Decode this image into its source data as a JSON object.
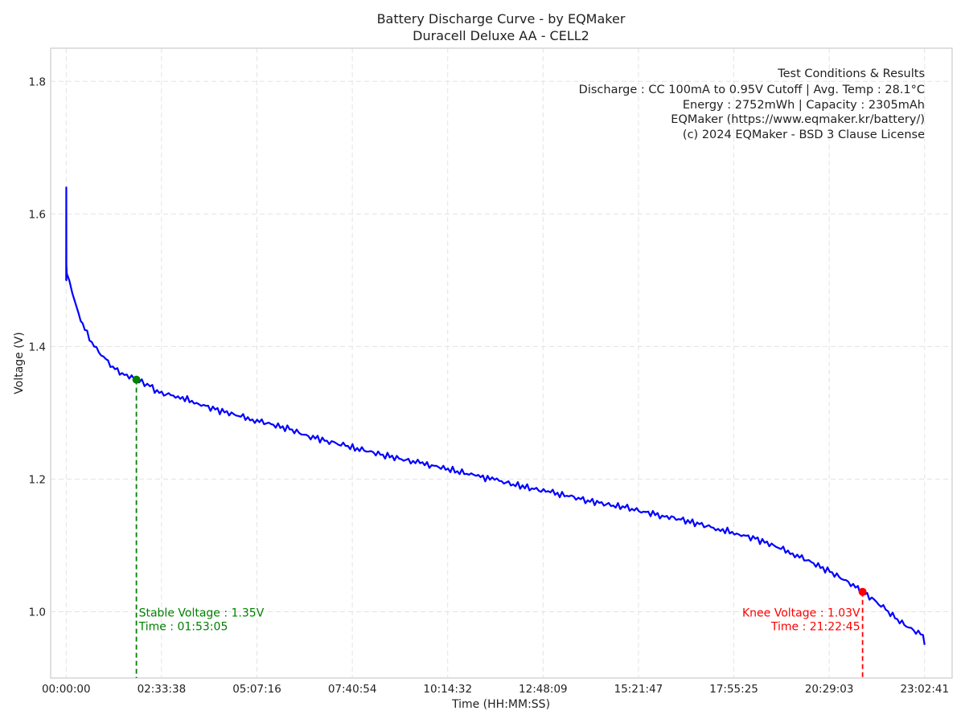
{
  "chart_data": {
    "type": "line",
    "title": "Battery Discharge Curve - by EQMaker",
    "subtitle": "Duracell Deluxe AA - CELL2",
    "xlabel": "Time (HH:MM:SS)",
    "ylabel": "Voltage (V)",
    "xlim": [
      "-00:25:00",
      "23:47:00"
    ],
    "ylim": [
      0.9,
      1.85
    ],
    "x_ticks": [
      "00:00:00",
      "02:33:38",
      "05:07:16",
      "07:40:54",
      "10:14:32",
      "12:48:09",
      "15:21:47",
      "17:55:25",
      "20:29:03",
      "23:02:41"
    ],
    "y_ticks": [
      "1.0",
      "1.2",
      "1.4",
      "1.6",
      "1.8"
    ],
    "grid": true,
    "series": [
      {
        "color": "#0000ff",
        "x": [
          "00:00:00",
          "00:00:10",
          "00:00:20",
          "00:00:30",
          "00:01:00",
          "00:05:00",
          "00:10:00",
          "00:15:00",
          "00:20:00",
          "00:30:00",
          "00:45:00",
          "01:00:00",
          "01:15:00",
          "01:30:00",
          "01:53:05",
          "02:15:00",
          "02:30:00",
          "03:00:00",
          "03:30:00",
          "04:00:00",
          "04:30:00",
          "05:00:00",
          "05:30:00",
          "06:00:00",
          "06:30:00",
          "07:00:00",
          "07:30:00",
          "08:00:00",
          "08:30:00",
          "09:00:00",
          "09:30:00",
          "10:00:00",
          "10:30:00",
          "11:00:00",
          "11:30:00",
          "12:00:00",
          "12:30:00",
          "13:00:00",
          "13:30:00",
          "14:00:00",
          "14:30:00",
          "15:00:00",
          "15:30:00",
          "16:00:00",
          "16:30:00",
          "17:00:00",
          "17:30:00",
          "18:00:00",
          "18:30:00",
          "19:00:00",
          "19:30:00",
          "20:00:00",
          "20:30:00",
          "21:00:00",
          "21:22:45",
          "21:45:00",
          "22:00:00",
          "22:15:00",
          "22:30:00",
          "22:45:00",
          "23:00:00",
          "23:02:41"
        ],
        "y": [
          1.5,
          1.64,
          1.5,
          1.52,
          1.51,
          1.5,
          1.48,
          1.465,
          1.45,
          1.425,
          1.4,
          1.385,
          1.37,
          1.36,
          1.35,
          1.34,
          1.33,
          1.325,
          1.315,
          1.305,
          1.298,
          1.29,
          1.283,
          1.275,
          1.265,
          1.258,
          1.25,
          1.243,
          1.237,
          1.23,
          1.224,
          1.218,
          1.212,
          1.205,
          1.199,
          1.192,
          1.186,
          1.18,
          1.174,
          1.168,
          1.162,
          1.157,
          1.151,
          1.145,
          1.139,
          1.132,
          1.125,
          1.118,
          1.11,
          1.1,
          1.088,
          1.075,
          1.06,
          1.045,
          1.03,
          1.015,
          1.003,
          0.99,
          0.98,
          0.972,
          0.965,
          0.95
        ]
      }
    ],
    "annotations": [
      {
        "label": "Stable Voltage : 1.35V",
        "time_label": "Time : 01:53:05",
        "x": "01:53:05",
        "y": 1.35,
        "color": "#008000"
      },
      {
        "label": "Knee Voltage : 1.03V",
        "time_label": "Time : 21:22:45",
        "x": "21:22:45",
        "y": 1.03,
        "color": "#ff0000"
      }
    ],
    "info_box": {
      "placement": "top-right",
      "lines": [
        "Test Conditions & Results",
        "Discharge : CC 100mA to 0.95V Cutoff | Avg. Temp : 28.1°C",
        "Energy : 2752mWh | Capacity : 2305mAh",
        "EQMaker (https://www.eqmaker.kr/battery/)",
        "(c) 2024 EQMaker - BSD 3 Clause License"
      ]
    },
    "colors": {
      "grid": "#e3e3e3",
      "frame": "#cccccc"
    }
  }
}
